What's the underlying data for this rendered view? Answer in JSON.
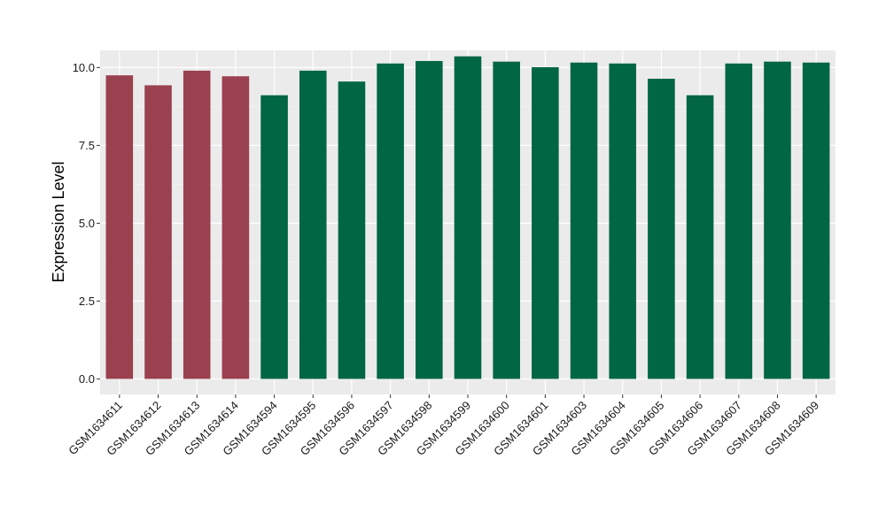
{
  "chart_data": {
    "type": "bar",
    "ylabel": "Expression Level",
    "xlabel": "",
    "ylim": [
      -0.5,
      10.55
    ],
    "yticks": [
      0.0,
      2.5,
      5.0,
      7.5,
      10.0
    ],
    "ytick_labels": [
      "0.0",
      "2.5",
      "5.0",
      "7.5",
      "10.0"
    ],
    "grid": true,
    "panel_background": "#ebebeb",
    "categories": [
      "GSM1634611",
      "GSM1634612",
      "GSM1634613",
      "GSM1634614",
      "GSM1634594",
      "GSM1634595",
      "GSM1634596",
      "GSM1634597",
      "GSM1634598",
      "GSM1634599",
      "GSM1634600",
      "GSM1634601",
      "GSM1634603",
      "GSM1634604",
      "GSM1634605",
      "GSM1634606",
      "GSM1634607",
      "GSM1634608",
      "GSM1634609"
    ],
    "values": [
      9.75,
      9.43,
      9.9,
      9.72,
      9.11,
      9.9,
      9.55,
      10.13,
      10.21,
      10.36,
      10.19,
      10.01,
      10.16,
      10.13,
      9.64,
      9.11,
      10.13,
      10.19,
      10.16
    ],
    "groups": [
      "a",
      "a",
      "a",
      "a",
      "b",
      "b",
      "b",
      "b",
      "b",
      "b",
      "b",
      "b",
      "b",
      "b",
      "b",
      "b",
      "b",
      "b",
      "b"
    ],
    "group_colors": {
      "a": "#9a414f",
      "b": "#006643"
    }
  }
}
